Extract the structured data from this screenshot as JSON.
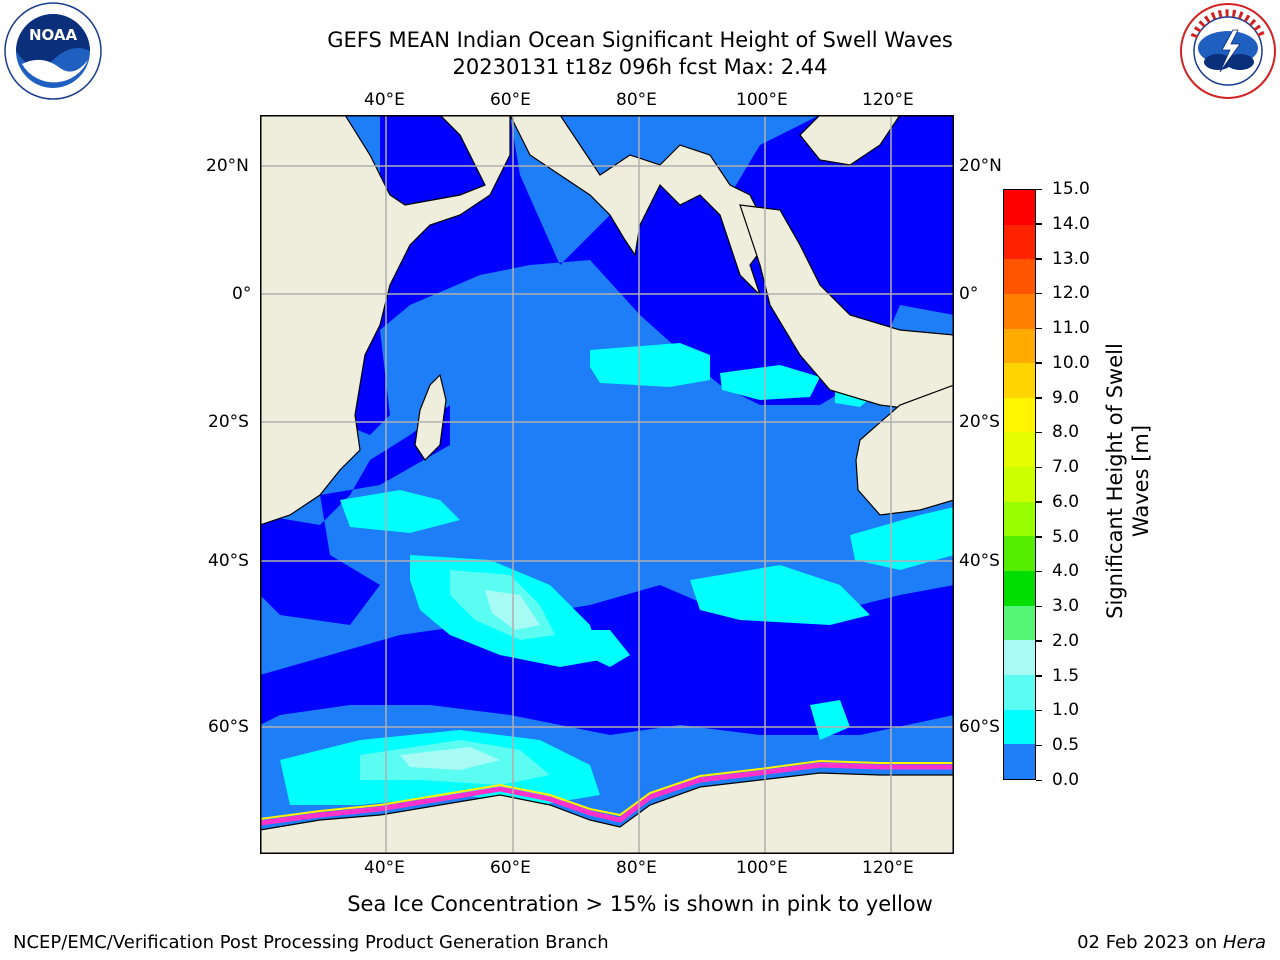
{
  "header": {
    "title_line1": "GEFS MEAN Indian Ocean Significant Height of Swell Waves",
    "title_line2": "20230131 t18z 096h fcst   Max: 2.44"
  },
  "logos": {
    "noaa_text": "NOAA",
    "noaa_ring": "NATIONAL OCEANIC AND ATMOSPHERIC ADMINISTRATION · U.S. DEPARTMENT OF COMMERCE",
    "nws_ring": "NATIONAL WEATHER SERVICE"
  },
  "map": {
    "top_lon_labels": [
      "40°E",
      "60°E",
      "80°E",
      "100°E",
      "120°E"
    ],
    "bottom_lon_labels": [
      "40°E",
      "60°E",
      "80°E",
      "100°E",
      "120°E"
    ],
    "left_lat_labels": [
      "20°N",
      "0°",
      "20°S",
      "40°S",
      "60°S"
    ],
    "right_lat_labels": [
      "20°N",
      "0°",
      "20°S",
      "40°S",
      "60°S"
    ],
    "colors": {
      "land": "#efeedd",
      "band_0_05": "#0000ff",
      "band_05_10": "#1e7ef7",
      "band_10_15": "#00ffff",
      "band_15_20": "#5bfcf2",
      "band_20_30": "#a8fbf5",
      "sea_ice": "#ff33cc",
      "grid": "#b0b0b0"
    }
  },
  "colorbar": {
    "ticks": [
      "15.0",
      "14.0",
      "13.0",
      "12.0",
      "11.0",
      "10.0",
      "9.0",
      "8.0",
      "7.0",
      "6.0",
      "5.0",
      "4.0",
      "3.0",
      "2.0",
      "1.5",
      "1.0",
      "0.5",
      "0.0"
    ],
    "colors": [
      "#ff0000",
      "#ff2200",
      "#ff5500",
      "#ff7f00",
      "#ffaa00",
      "#ffd400",
      "#fff500",
      "#e6ff00",
      "#ccff00",
      "#99ff00",
      "#55ee00",
      "#00dd00",
      "#55f577",
      "#a8fbf5",
      "#5bfcf2",
      "#00ffff",
      "#1e7ef7",
      "#0000ff"
    ],
    "label_line1": "Significant Height of Swell",
    "label_line2": "Waves [m]"
  },
  "note": "Sea Ice Concentration > 15% is shown in pink to yellow",
  "footer": {
    "left": "NCEP/EMC/Verification Post Processing Product Generation Branch",
    "right_date": "02 Feb 2023 on ",
    "right_host": "Hera"
  }
}
